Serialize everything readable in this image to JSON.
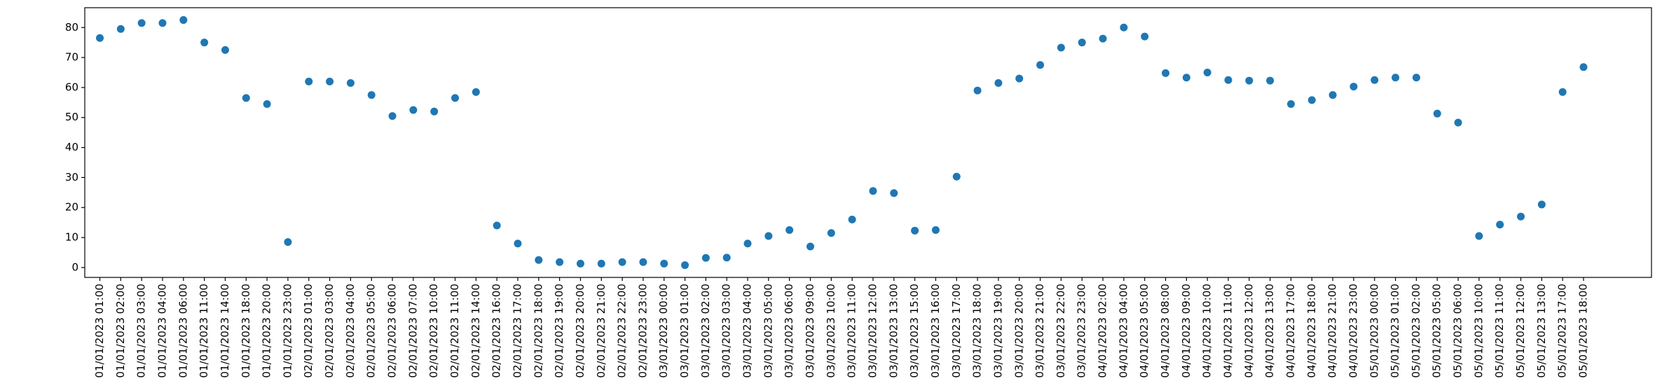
{
  "chart_data": {
    "type": "scatter",
    "categories": [
      "01/01/2023 01:00",
      "01/01/2023 02:00",
      "01/01/2023 03:00",
      "01/01/2023 04:00",
      "01/01/2023 06:00",
      "01/01/2023 11:00",
      "01/01/2023 14:00",
      "01/01/2023 18:00",
      "01/01/2023 20:00",
      "01/01/2023 23:00",
      "02/01/2023 01:00",
      "02/01/2023 03:00",
      "02/01/2023 04:00",
      "02/01/2023 05:00",
      "02/01/2023 06:00",
      "02/01/2023 07:00",
      "02/01/2023 10:00",
      "02/01/2023 11:00",
      "02/01/2023 14:00",
      "02/01/2023 16:00",
      "02/01/2023 17:00",
      "02/01/2023 18:00",
      "02/01/2023 19:00",
      "02/01/2023 20:00",
      "02/01/2023 21:00",
      "02/01/2023 22:00",
      "02/01/2023 23:00",
      "03/01/2023 00:00",
      "03/01/2023 01:00",
      "03/01/2023 02:00",
      "03/01/2023 03:00",
      "03/01/2023 04:00",
      "03/01/2023 05:00",
      "03/01/2023 06:00",
      "03/01/2023 09:00",
      "03/01/2023 10:00",
      "03/01/2023 11:00",
      "03/01/2023 12:00",
      "03/01/2023 13:00",
      "03/01/2023 15:00",
      "03/01/2023 16:00",
      "03/01/2023 17:00",
      "03/01/2023 18:00",
      "03/01/2023 19:00",
      "03/01/2023 20:00",
      "03/01/2023 21:00",
      "03/01/2023 22:00",
      "03/01/2023 23:00",
      "04/01/2023 02:00",
      "04/01/2023 04:00",
      "04/01/2023 05:00",
      "04/01/2023 08:00",
      "04/01/2023 09:00",
      "04/01/2023 10:00",
      "04/01/2023 11:00",
      "04/01/2023 12:00",
      "04/01/2023 13:00",
      "04/01/2023 17:00",
      "04/01/2023 18:00",
      "04/01/2023 21:00",
      "04/01/2023 23:00",
      "05/01/2023 00:00",
      "05/01/2023 01:00",
      "05/01/2023 02:00",
      "05/01/2023 05:00",
      "05/01/2023 06:00",
      "05/01/2023 10:00",
      "05/01/2023 11:00",
      "05/01/2023 12:00",
      "05/01/2023 13:00",
      "05/01/2023 17:00",
      "05/01/2023 18:00"
    ],
    "values": [
      76.5,
      79.5,
      81.5,
      81.5,
      82.5,
      75,
      72.5,
      56.5,
      54.5,
      8.5,
      62,
      62,
      61.5,
      57.5,
      50.5,
      52.5,
      52,
      56.5,
      58.5,
      14,
      8,
      2.5,
      1.8,
      1.3,
      1.3,
      1.8,
      1.8,
      1.3,
      0.8,
      3.2,
      3.3,
      8,
      10.5,
      12.5,
      7,
      11.5,
      16,
      25.5,
      24.8,
      12.3,
      12.5,
      30.3,
      59,
      61.5,
      63,
      67.5,
      73.3,
      75,
      76.3,
      80,
      77,
      64.8,
      63.3,
      65,
      62.5,
      62.3,
      62.3,
      54.5,
      55.8,
      57.5,
      60.3,
      62.5,
      63.3,
      63.3,
      51.3,
      48.3,
      10.5,
      14.3,
      17,
      21,
      58.5,
      66.8
    ],
    "color": "#1f77b4",
    "ylim": [
      -3.3,
      86.6
    ],
    "yticks": [
      0,
      10,
      20,
      30,
      40,
      50,
      60,
      70,
      80
    ],
    "grid": false
  }
}
